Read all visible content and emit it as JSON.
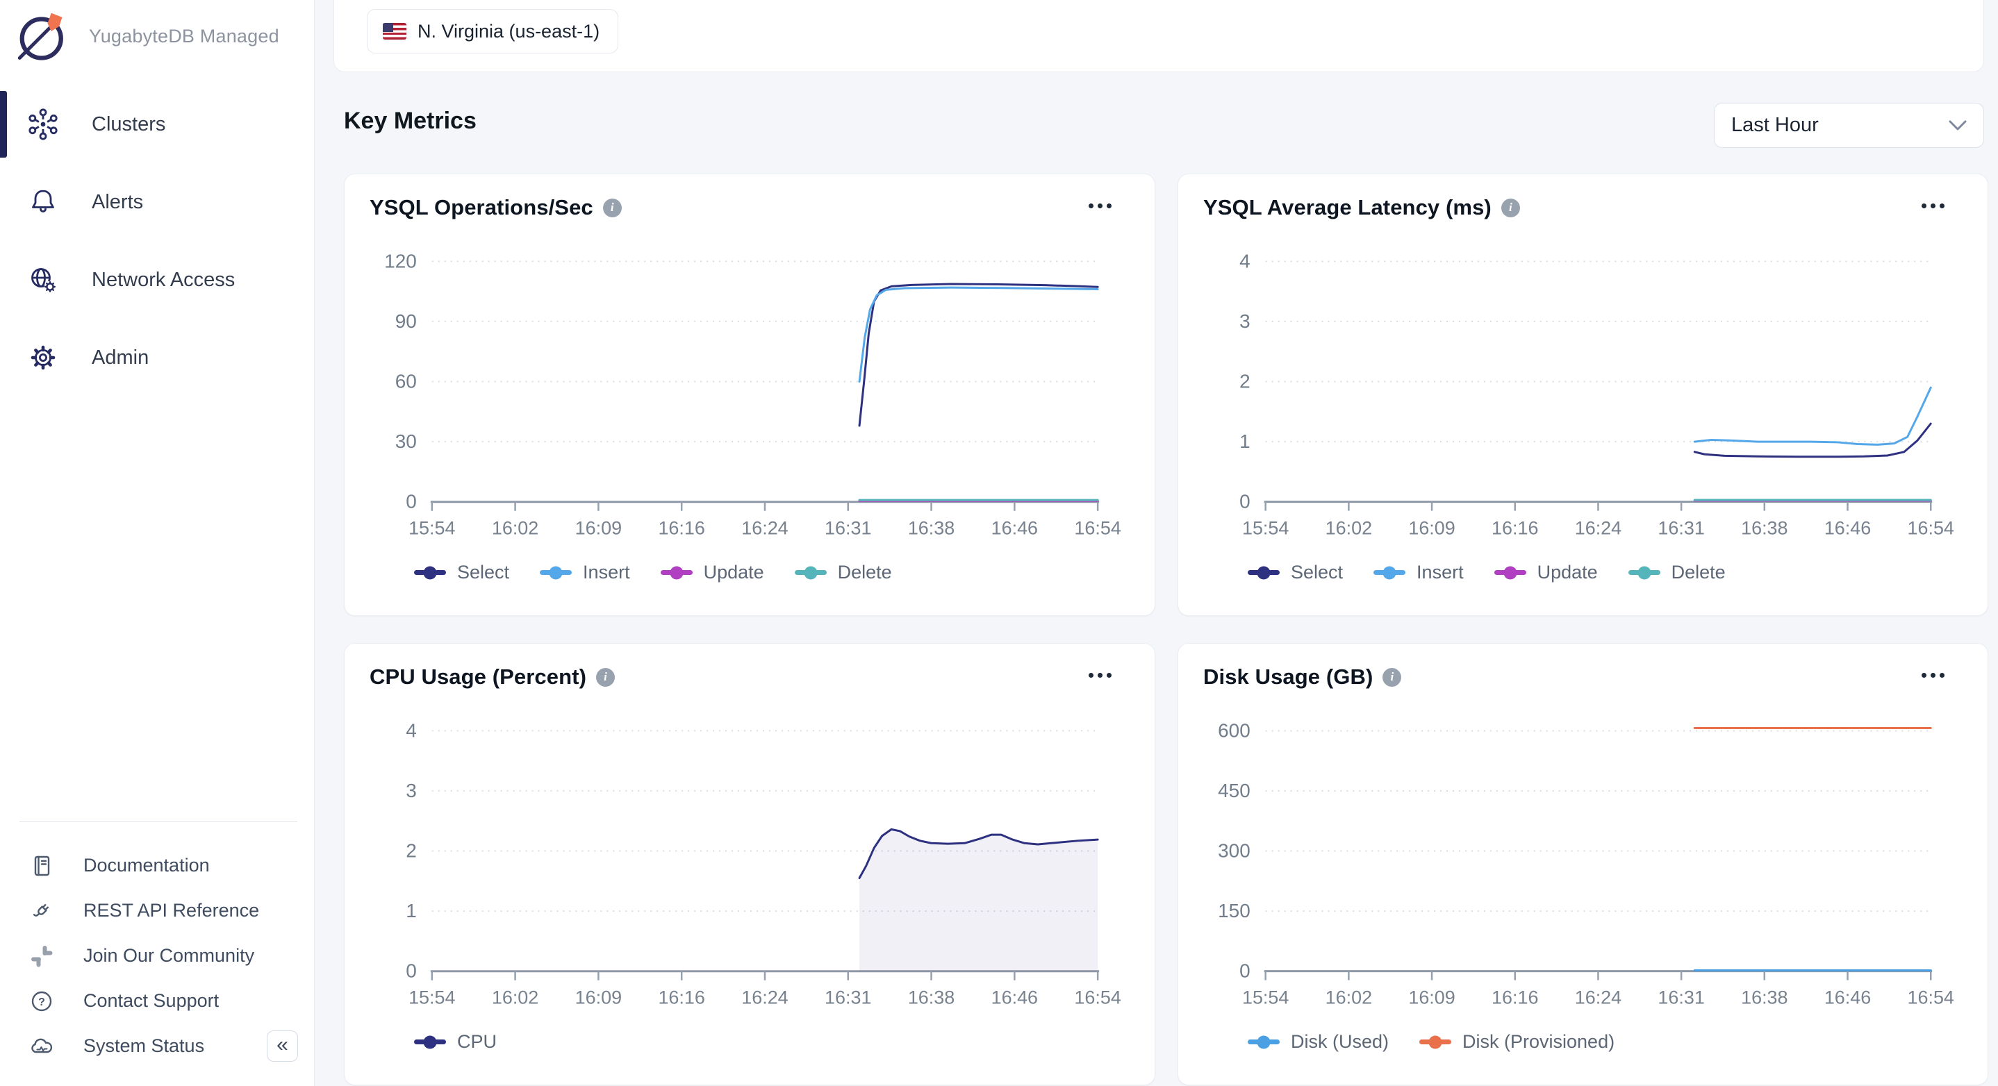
{
  "sidebar": {
    "brand": {
      "title": "YugabyteDB Managed",
      "logo_icon": "yugabyte-planet-rocket"
    },
    "nav": [
      {
        "label": "Clusters",
        "icon": "clusters-icon",
        "active": true
      },
      {
        "label": "Alerts",
        "icon": "bell-icon",
        "active": false
      },
      {
        "label": "Network Access",
        "icon": "globe-gear-icon",
        "active": false
      },
      {
        "label": "Admin",
        "icon": "gear-icon",
        "active": false
      }
    ],
    "footer_links": [
      {
        "label": "Documentation",
        "icon": "book-icon"
      },
      {
        "label": "REST API Reference",
        "icon": "plug-icon"
      },
      {
        "label": "Join Our Community",
        "icon": "slack-icon"
      },
      {
        "label": "Contact Support",
        "icon": "help-circle-icon"
      },
      {
        "label": "System Status",
        "icon": "cloud-status-icon"
      }
    ],
    "collapse_glyph": "«"
  },
  "header": {
    "region_chip": {
      "label": "N. Virginia (us-east-1)",
      "icon": "us-flag-icon"
    }
  },
  "main": {
    "section_title": "Key Metrics",
    "time_range": {
      "value": "Last Hour"
    }
  },
  "colors": {
    "accent_navy": "#1f2556",
    "series_select": "#2d3180",
    "series_insert": "#54a7e8",
    "series_update": "#b03fc2",
    "series_delete": "#56b5ba",
    "series_disk_used": "#4aa0e2",
    "series_disk_provisioned": "#e8714b",
    "page_bg": "#f4f6f9",
    "card_border": "#eaeef3"
  },
  "chart_data": [
    {
      "id": "ysql-ops",
      "type": "line",
      "title": "YSQL Operations/Sec",
      "ylim": [
        0,
        120
      ],
      "yticks": [
        0,
        30,
        60,
        90,
        120
      ],
      "xticklabels": [
        "15:54",
        "16:02",
        "16:09",
        "16:16",
        "16:24",
        "16:31",
        "16:38",
        "16:46",
        "16:54"
      ],
      "x_unit": "fraction of axis from 15:54 to 16:54",
      "grid": "dotted-horizontal",
      "legend_position": "bottom",
      "series": [
        {
          "name": "Select",
          "color": "#2d3180",
          "points": [
            [
              0.642,
              38
            ],
            [
              0.649,
              60
            ],
            [
              0.656,
              84
            ],
            [
              0.664,
              100
            ],
            [
              0.674,
              105.5
            ],
            [
              0.69,
              107.5
            ],
            [
              0.72,
              108.2
            ],
            [
              0.78,
              108.7
            ],
            [
              0.85,
              108.5
            ],
            [
              0.92,
              108.1
            ],
            [
              0.97,
              107.6
            ],
            [
              1,
              107.2
            ]
          ]
        },
        {
          "name": "Insert",
          "color": "#54a7e8",
          "points": [
            [
              0.642,
              60
            ],
            [
              0.65,
              82
            ],
            [
              0.658,
              96
            ],
            [
              0.668,
              103
            ],
            [
              0.682,
              105.8
            ],
            [
              0.71,
              106.6
            ],
            [
              0.78,
              106.9
            ],
            [
              0.86,
              106.7
            ],
            [
              0.93,
              106.4
            ],
            [
              1,
              106.1
            ]
          ]
        },
        {
          "name": "Update",
          "color": "#b03fc2",
          "points": [
            [
              0.642,
              0.5
            ],
            [
              1,
              0.5
            ]
          ]
        },
        {
          "name": "Delete",
          "color": "#56b5ba",
          "points": [
            [
              0.642,
              0.9
            ],
            [
              1,
              0.9
            ]
          ]
        }
      ]
    },
    {
      "id": "ysql-latency",
      "type": "line",
      "title": "YSQL Average Latency (ms)",
      "ylim": [
        0,
        4
      ],
      "yticks": [
        0,
        1,
        2,
        3,
        4
      ],
      "xticklabels": [
        "15:54",
        "16:02",
        "16:09",
        "16:16",
        "16:24",
        "16:31",
        "16:38",
        "16:46",
        "16:54"
      ],
      "x_unit": "fraction of axis from 15:54 to 16:54",
      "grid": "dotted-horizontal",
      "legend_position": "bottom",
      "series": [
        {
          "name": "Select",
          "color": "#2d3180",
          "points": [
            [
              0.645,
              0.83
            ],
            [
              0.66,
              0.79
            ],
            [
              0.69,
              0.765
            ],
            [
              0.74,
              0.755
            ],
            [
              0.8,
              0.75
            ],
            [
              0.86,
              0.75
            ],
            [
              0.9,
              0.755
            ],
            [
              0.935,
              0.77
            ],
            [
              0.96,
              0.83
            ],
            [
              0.98,
              1.02
            ],
            [
              1,
              1.3
            ]
          ]
        },
        {
          "name": "Insert",
          "color": "#54a7e8",
          "points": [
            [
              0.645,
              1.0
            ],
            [
              0.67,
              1.03
            ],
            [
              0.7,
              1.02
            ],
            [
              0.74,
              1.0
            ],
            [
              0.78,
              1.0
            ],
            [
              0.82,
              1.0
            ],
            [
              0.86,
              0.99
            ],
            [
              0.89,
              0.96
            ],
            [
              0.92,
              0.95
            ],
            [
              0.945,
              0.97
            ],
            [
              0.965,
              1.08
            ],
            [
              0.98,
              1.42
            ],
            [
              1,
              1.9
            ]
          ]
        },
        {
          "name": "Update",
          "color": "#b03fc2",
          "points": [
            [
              0.645,
              0.02
            ],
            [
              1,
              0.02
            ]
          ]
        },
        {
          "name": "Delete",
          "color": "#56b5ba",
          "points": [
            [
              0.645,
              0.03
            ],
            [
              1,
              0.03
            ]
          ]
        }
      ]
    },
    {
      "id": "cpu-usage",
      "type": "area",
      "title": "CPU Usage (Percent)",
      "ylim": [
        0,
        4
      ],
      "yticks": [
        0,
        1,
        2,
        3,
        4
      ],
      "xticklabels": [
        "15:54",
        "16:02",
        "16:09",
        "16:16",
        "16:24",
        "16:31",
        "16:38",
        "16:46",
        "16:54"
      ],
      "x_unit": "fraction of axis from 15:54 to 16:54",
      "grid": "dotted-horizontal",
      "legend_position": "bottom",
      "series": [
        {
          "name": "CPU",
          "color": "#2d3180",
          "fill": "rgba(45,49,128,0.07)",
          "points": [
            [
              0.642,
              1.55
            ],
            [
              0.652,
              1.75
            ],
            [
              0.664,
              2.05
            ],
            [
              0.676,
              2.25
            ],
            [
              0.69,
              2.36
            ],
            [
              0.703,
              2.33
            ],
            [
              0.717,
              2.24
            ],
            [
              0.733,
              2.17
            ],
            [
              0.75,
              2.13
            ],
            [
              0.775,
              2.12
            ],
            [
              0.8,
              2.13
            ],
            [
              0.822,
              2.2
            ],
            [
              0.84,
              2.27
            ],
            [
              0.855,
              2.27
            ],
            [
              0.872,
              2.19
            ],
            [
              0.89,
              2.13
            ],
            [
              0.91,
              2.11
            ],
            [
              0.94,
              2.14
            ],
            [
              0.97,
              2.17
            ],
            [
              1,
              2.19
            ]
          ]
        }
      ]
    },
    {
      "id": "disk-usage",
      "type": "line",
      "title": "Disk Usage (GB)",
      "ylim": [
        0,
        600
      ],
      "yticks": [
        0,
        150,
        300,
        450,
        600
      ],
      "xticklabels": [
        "15:54",
        "16:02",
        "16:09",
        "16:16",
        "16:24",
        "16:31",
        "16:38",
        "16:46",
        "16:54"
      ],
      "x_unit": "fraction of axis from 15:54 to 16:54",
      "grid": "dotted-horizontal",
      "legend_position": "bottom",
      "series": [
        {
          "name": "Disk (Used)",
          "color": "#4aa0e2",
          "points": [
            [
              0.645,
              2
            ],
            [
              1,
              2
            ]
          ]
        },
        {
          "name": "Disk (Provisioned)",
          "color": "#e8714b",
          "points": [
            [
              0.645,
              607
            ],
            [
              1,
              607
            ]
          ]
        }
      ]
    }
  ]
}
